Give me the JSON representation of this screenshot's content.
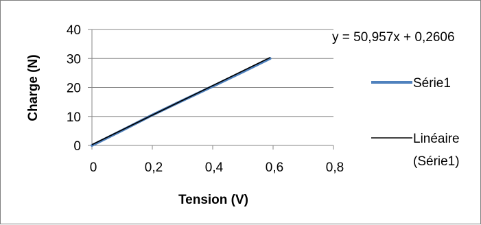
{
  "chart_data": {
    "type": "scatter",
    "xlabel": "Tension (V)",
    "ylabel": "Charge (N)",
    "xlim": [
      0,
      0.8
    ],
    "ylim": [
      0,
      40
    ],
    "x_ticks": [
      "0",
      "0,2",
      "0,4",
      "0,6",
      "0,8"
    ],
    "y_ticks": [
      "0",
      "10",
      "20",
      "30",
      "40"
    ],
    "grid": "horizontal",
    "legend_position": "right",
    "series": [
      {
        "name": "Série1",
        "color": "#4f81bd",
        "x": [
          0,
          0.1,
          0.2,
          0.3,
          0.4,
          0.5,
          0.59
        ],
        "y": [
          0,
          5.2,
          10.5,
          15.5,
          20.4,
          25.4,
          30
        ]
      }
    ],
    "trendline": {
      "legend_lines": [
        "Linéaire",
        "(Série1)"
      ],
      "color": "#000000",
      "equation": "y = 50,957x + 0,2606",
      "slope": 50.957,
      "intercept": 0.2606,
      "x_range": [
        0,
        0.59
      ]
    }
  }
}
